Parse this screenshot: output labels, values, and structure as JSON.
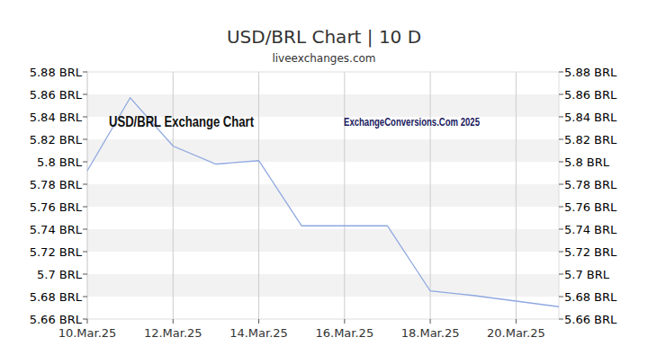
{
  "chart_data": {
    "type": "line",
    "title": "USD/BRL Chart | 10 D",
    "subtitle": "liveexchanges.com",
    "annotations": [
      "USD/BRL Exchange Chart",
      "ExchangeConversions.Com 2025"
    ],
    "categories": [
      "10.Mar.25",
      null,
      "12.Mar.25",
      null,
      "14.Mar.25",
      null,
      "16.Mar.25",
      null,
      "18.Mar.25",
      null,
      "20.Mar.25",
      null
    ],
    "values": [
      5.792,
      5.857,
      5.814,
      5.798,
      5.801,
      5.743,
      5.743,
      5.743,
      5.685,
      5.681,
      5.676,
      5.671
    ],
    "color": "#8fa8e0",
    "ylim": [
      5.66,
      5.88
    ],
    "yticks": [
      {
        "value": 5.66,
        "label": "5.66 BRL"
      },
      {
        "value": 5.68,
        "label": "5.68 BRL"
      },
      {
        "value": 5.7,
        "label": "5.7 BRL"
      },
      {
        "value": 5.72,
        "label": "5.72 BRL"
      },
      {
        "value": 5.74,
        "label": "5.74 BRL"
      },
      {
        "value": 5.76,
        "label": "5.76 BRL"
      },
      {
        "value": 5.78,
        "label": "5.78 BRL"
      },
      {
        "value": 5.8,
        "label": "5.8 BRL"
      },
      {
        "value": 5.82,
        "label": "5.82 BRL"
      },
      {
        "value": 5.84,
        "label": "5.84 BRL"
      },
      {
        "value": 5.86,
        "label": "5.86 BRL"
      },
      {
        "value": 5.88,
        "label": "5.88 BRL"
      }
    ],
    "grid": true
  }
}
